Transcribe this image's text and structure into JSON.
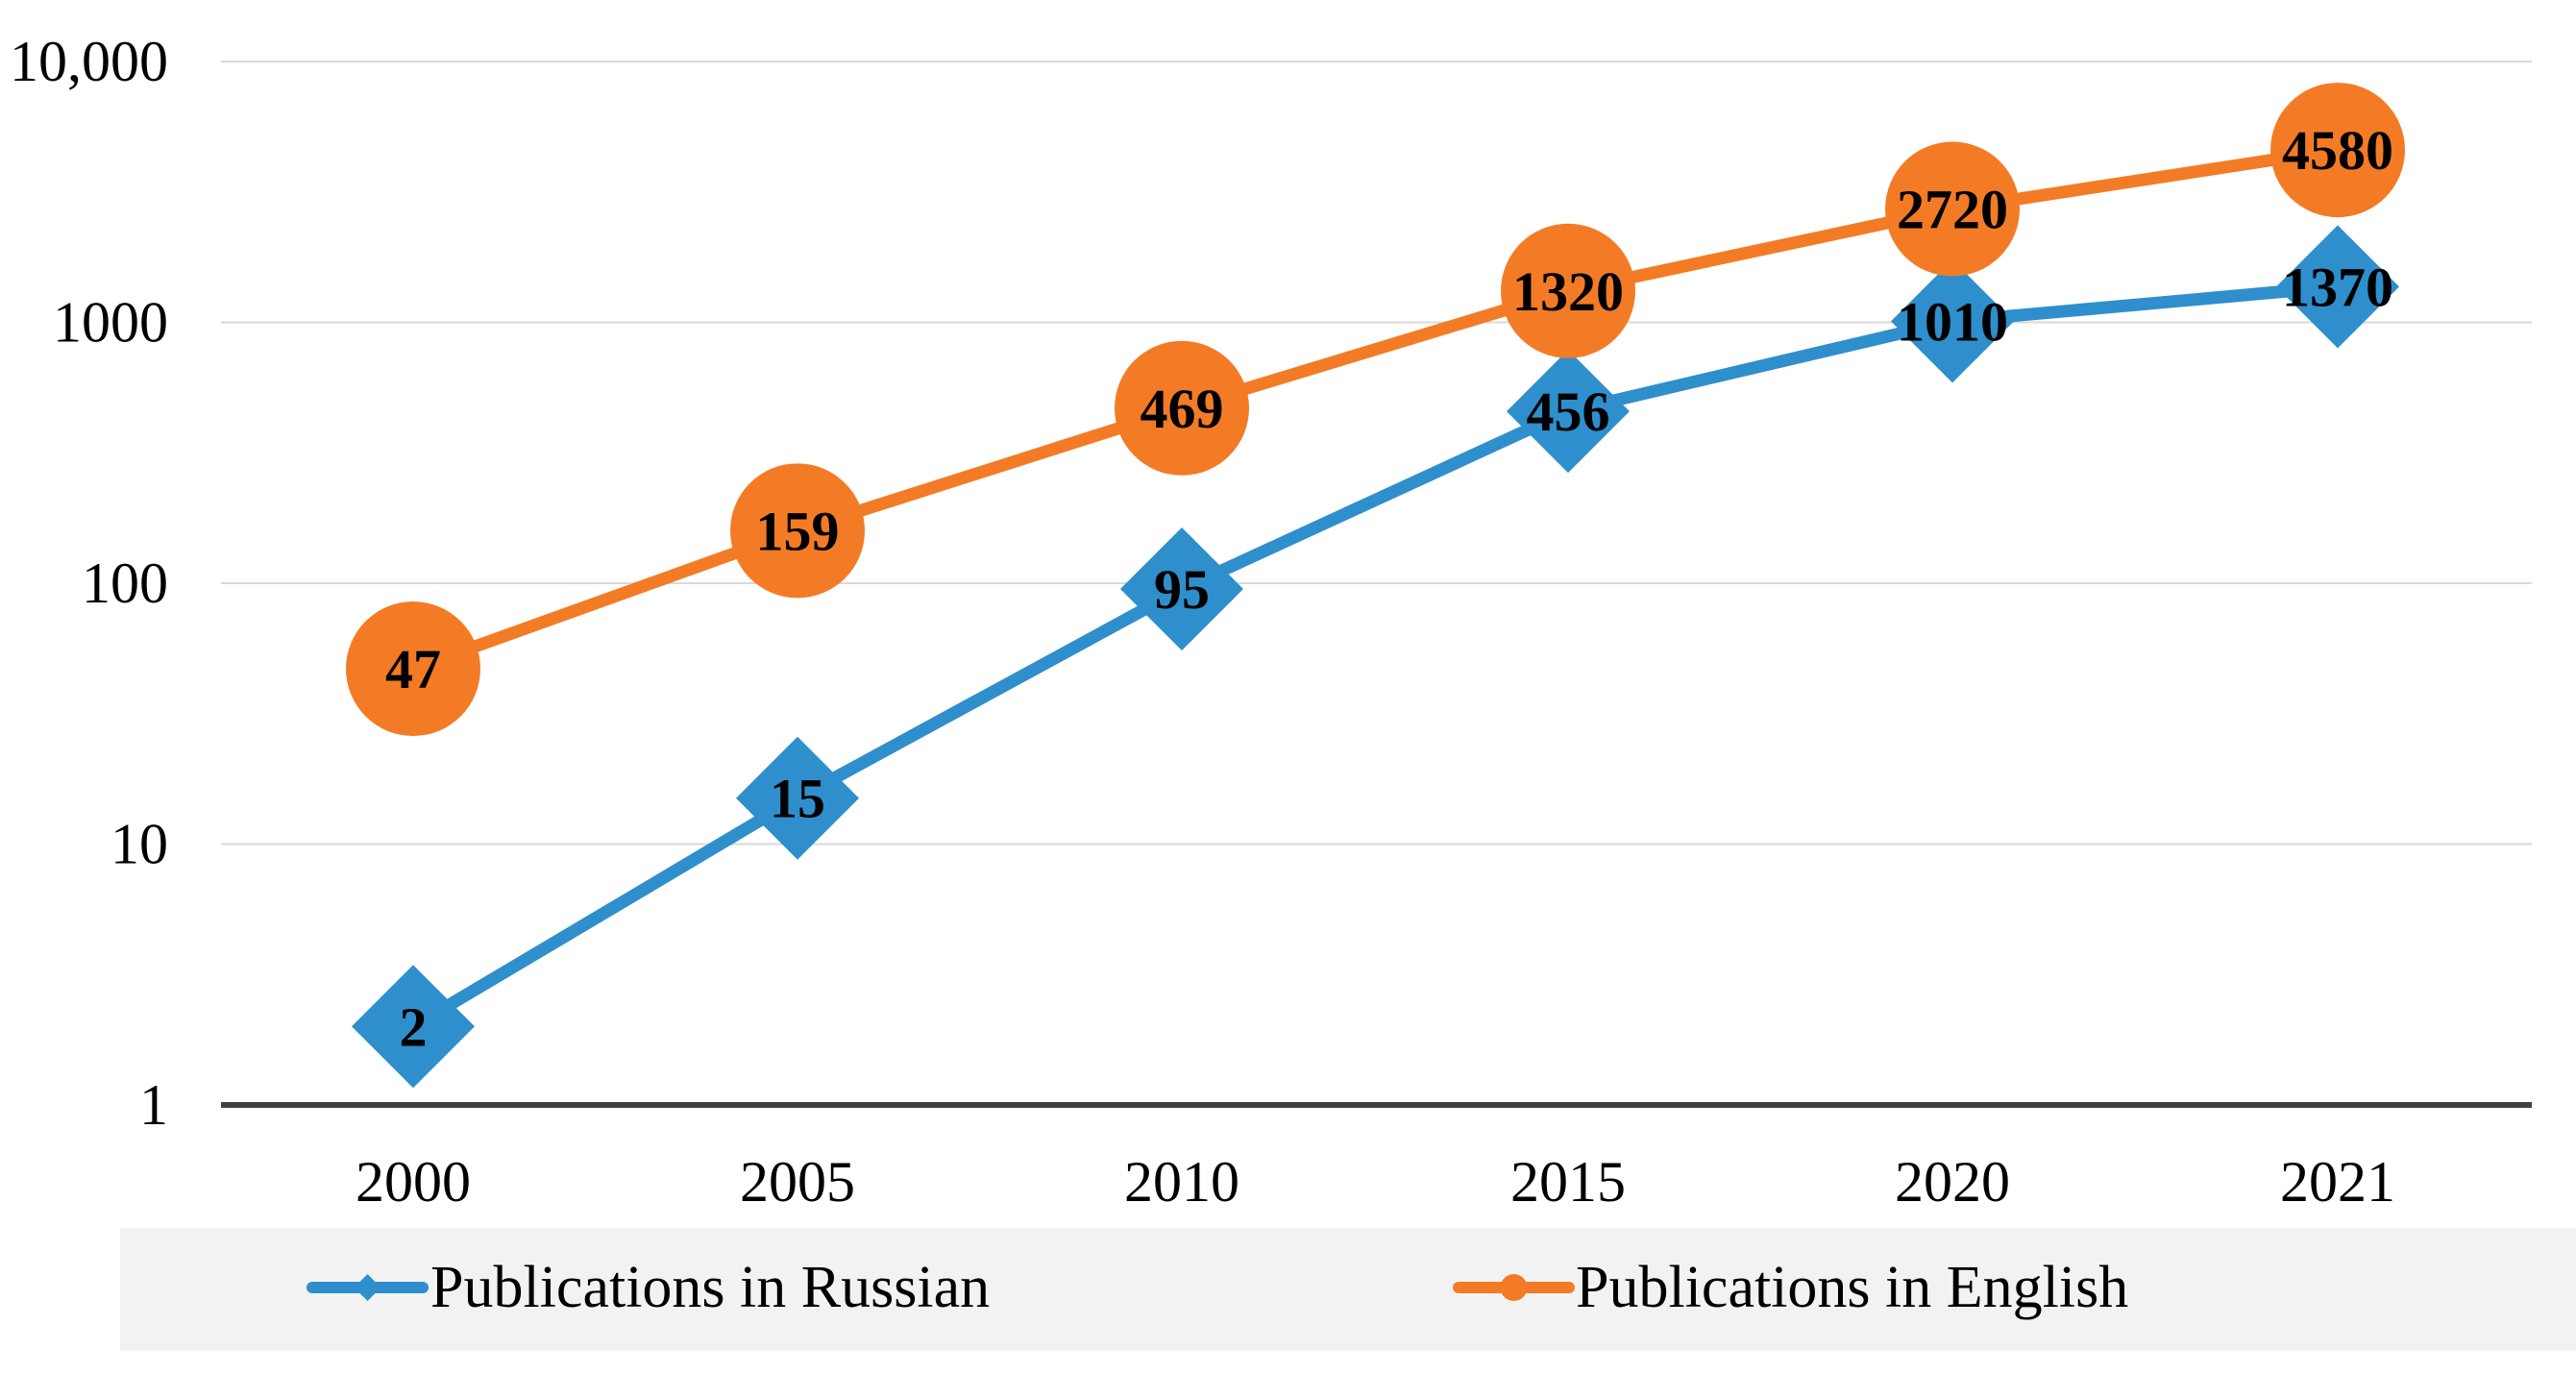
{
  "chart_data": {
    "type": "line",
    "title": "",
    "xlabel": "",
    "ylabel": "",
    "y_scale": "log",
    "ylim": [
      1,
      10000
    ],
    "y_ticks": [
      {
        "value": 1,
        "label": "1"
      },
      {
        "value": 10,
        "label": "10"
      },
      {
        "value": 100,
        "label": "100"
      },
      {
        "value": 1000,
        "label": "1000"
      },
      {
        "value": 10000,
        "label": "10,000"
      }
    ],
    "categories": [
      "2000",
      "2005",
      "2010",
      "2015",
      "2020",
      "2021"
    ],
    "grid": true,
    "legend_position": "bottom",
    "series": [
      {
        "name": "Publications in Russian",
        "color": "#2e8fcc",
        "marker": "diamond",
        "values": [
          2,
          15,
          95,
          456,
          1010,
          1370
        ],
        "labels": [
          "2",
          "15",
          "95",
          "456",
          "1010",
          "1370"
        ]
      },
      {
        "name": "Publications in English",
        "color": "#f47b25",
        "marker": "circle",
        "values": [
          47,
          159,
          469,
          1320,
          2720,
          4580
        ],
        "labels": [
          "47",
          "159",
          "469",
          "1320",
          "2720",
          "4580"
        ]
      }
    ]
  }
}
